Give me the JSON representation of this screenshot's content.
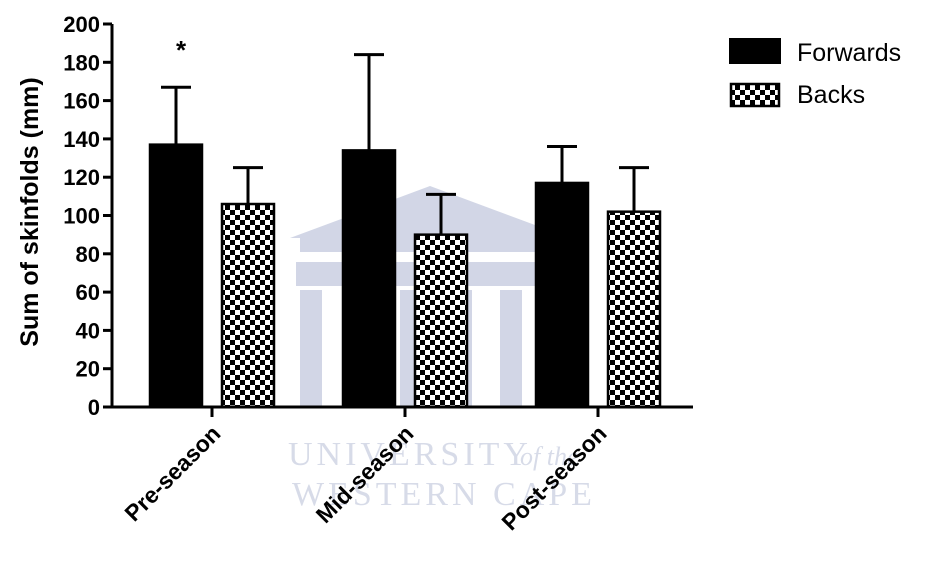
{
  "chart_data": {
    "type": "bar",
    "categories": [
      "Pre-season",
      "Mid-season",
      "Post-season"
    ],
    "series": [
      {
        "name": "Forwards",
        "values": [
          137,
          134,
          117
        ],
        "error": [
          30,
          50,
          19
        ],
        "fill": "#000000"
      },
      {
        "name": "Backs",
        "values": [
          106,
          90,
          102
        ],
        "error": [
          19,
          21,
          23
        ],
        "fill": "checkered"
      }
    ],
    "ylabel": "Sum of skinfolds (mm)",
    "xlabel": "",
    "ylim": [
      0,
      200
    ],
    "yticks": [
      0,
      20,
      40,
      60,
      80,
      100,
      120,
      140,
      160,
      180,
      200
    ],
    "annotations": [
      {
        "text": "*",
        "category": "Pre-season",
        "series": "Forwards"
      }
    ],
    "legend_position": "top-right",
    "grid": false
  },
  "watermark": {
    "line1": "UNIVERSITY",
    "line1_suffix": "of the",
    "line2": "WESTERN CAPE"
  }
}
